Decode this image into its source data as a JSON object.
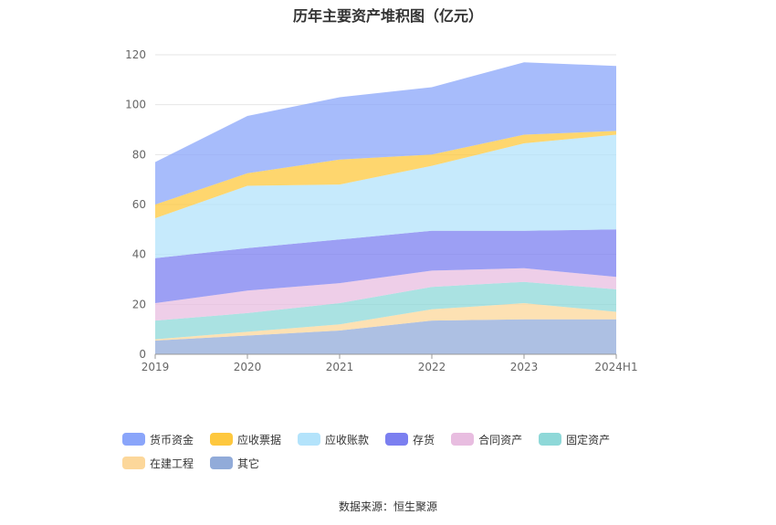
{
  "title": "历年主要资产堆积图（亿元）",
  "source": "数据来源：恒生聚源",
  "chart_data": {
    "type": "area",
    "stacked": true,
    "categories": [
      "2019",
      "2020",
      "2021",
      "2022",
      "2023",
      "2024H1"
    ],
    "ylim": [
      0,
      120
    ],
    "yticks": [
      0,
      20,
      40,
      60,
      80,
      100,
      120
    ],
    "grid": true,
    "legend_position": "bottom-left",
    "series": [
      {
        "name": "其它",
        "color": "#91abd9",
        "values": [
          5.5,
          7.5,
          9.5,
          13.5,
          14,
          14
        ]
      },
      {
        "name": "在建工程",
        "color": "#fcd79a",
        "values": [
          0.5,
          1.5,
          2.5,
          4.5,
          6.5,
          3
        ]
      },
      {
        "name": "固定资产",
        "color": "#8ed8d8",
        "values": [
          7.5,
          7.5,
          8.5,
          9,
          8.5,
          9
        ]
      },
      {
        "name": "合同资产",
        "color": "#e8bde0",
        "values": [
          7,
          9,
          8,
          6.5,
          5.5,
          5
        ]
      },
      {
        "name": "存货",
        "color": "#7b7ff0",
        "values": [
          18,
          17,
          17.5,
          16,
          15,
          19
        ]
      },
      {
        "name": "应收账款",
        "color": "#b3e3fb",
        "values": [
          16,
          25,
          22,
          26,
          35,
          38
        ]
      },
      {
        "name": "应收票据",
        "color": "#fec83e",
        "values": [
          5.5,
          5,
          10,
          4.5,
          3.5,
          1.5
        ]
      },
      {
        "name": "货币资金",
        "color": "#8aa5fa",
        "values": [
          17,
          23,
          25,
          27,
          29,
          26
        ]
      }
    ],
    "legend": [
      {
        "name": "货币资金",
        "color": "#8aa5fa"
      },
      {
        "name": "应收票据",
        "color": "#fec83e"
      },
      {
        "name": "应收账款",
        "color": "#b3e3fb"
      },
      {
        "name": "存货",
        "color": "#7b7ff0"
      },
      {
        "name": "合同资产",
        "color": "#e8bde0"
      },
      {
        "name": "固定资产",
        "color": "#8ed8d8"
      },
      {
        "name": "在建工程",
        "color": "#fcd79a"
      },
      {
        "name": "其它",
        "color": "#91abd9"
      }
    ]
  }
}
